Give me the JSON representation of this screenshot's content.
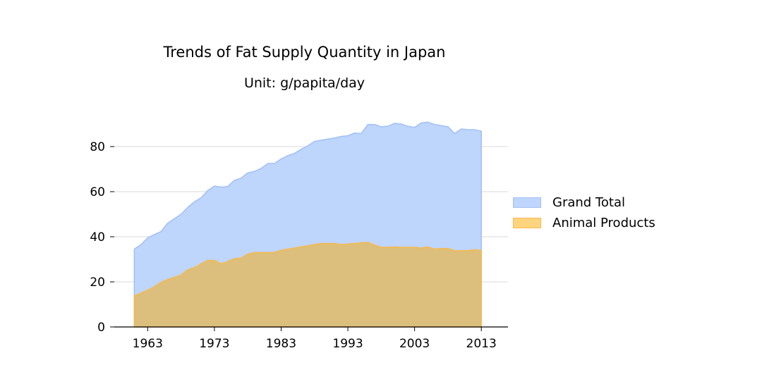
{
  "chart_data": {
    "type": "area",
    "title": "Trends of Fat Supply Quantity in Japan",
    "subtitle": "Unit: g/papita/day",
    "xlabel": "",
    "ylabel": "",
    "xlim": [
      1958,
      2017
    ],
    "ylim": [
      0,
      95
    ],
    "x_ticks": [
      1963,
      1973,
      1983,
      1993,
      2003,
      2013
    ],
    "y_ticks": [
      0,
      20,
      40,
      60,
      80
    ],
    "grid": "horizontal",
    "legend_position": "right",
    "x": [
      1961,
      1962,
      1963,
      1964,
      1965,
      1966,
      1967,
      1968,
      1969,
      1970,
      1971,
      1972,
      1973,
      1974,
      1975,
      1976,
      1977,
      1978,
      1979,
      1980,
      1981,
      1982,
      1983,
      1984,
      1985,
      1986,
      1987,
      1988,
      1989,
      1990,
      1991,
      1992,
      1993,
      1994,
      1995,
      1996,
      1997,
      1998,
      1999,
      2000,
      2001,
      2002,
      2003,
      2004,
      2005,
      2006,
      2007,
      2008,
      2009,
      2010,
      2011,
      2012,
      2013
    ],
    "series": [
      {
        "name": "Grand Total",
        "color": "#a4c2f4",
        "fill": "#bed5fc",
        "values": [
          34.5,
          36.5,
          39.5,
          41,
          42.3,
          46,
          48,
          50,
          53,
          55.5,
          57.3,
          60.5,
          62.5,
          62,
          62.3,
          65,
          66,
          68.3,
          69,
          70.3,
          72.5,
          72.5,
          74.5,
          76,
          77,
          78.8,
          80.3,
          82.3,
          82.8,
          83.3,
          83.8,
          84.5,
          84.8,
          86,
          85.8,
          89.8,
          89.8,
          88.8,
          89,
          90.3,
          90,
          89,
          88.5,
          90.5,
          90.8,
          89.8,
          89.3,
          88.8,
          85.8,
          87.8,
          87.5,
          87.5,
          86.8
        ]
      },
      {
        "name": "Animal Products",
        "color": "#f6b94c",
        "fill": "#dcbf7c",
        "legend_fill": "#ffd47f",
        "values": [
          13.8,
          15,
          16.3,
          17.8,
          19.8,
          21,
          22,
          23,
          25.3,
          26.3,
          28,
          29.5,
          29.5,
          28,
          29,
          30.3,
          30.5,
          32.3,
          33,
          33,
          33,
          33,
          34,
          34.5,
          35,
          35.5,
          36,
          36.5,
          37,
          37,
          37,
          36.5,
          36.8,
          37,
          37.3,
          37.5,
          36.3,
          35.3,
          35.3,
          35.5,
          35.3,
          35.3,
          35.3,
          35,
          35.5,
          34.5,
          34.8,
          34.8,
          33.8,
          33.8,
          33.8,
          34.3,
          33.8
        ]
      }
    ]
  }
}
